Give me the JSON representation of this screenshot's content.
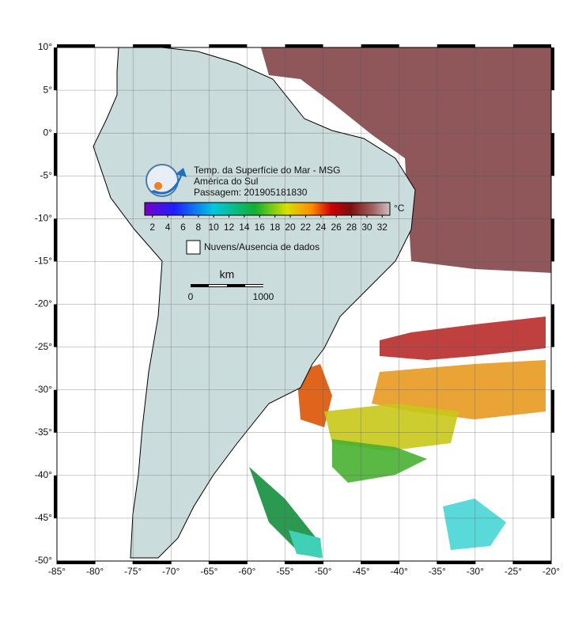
{
  "map": {
    "title": "Temp. da Superfície do Mar - MSG",
    "region": "América do Sul",
    "pass": "Passagem: 201905181830",
    "colorbar": {
      "unit": "°C",
      "range": [
        1,
        33
      ],
      "ticks": [
        2,
        4,
        6,
        8,
        10,
        12,
        14,
        16,
        18,
        20,
        22,
        24,
        26,
        28,
        30,
        32
      ]
    },
    "legend": "Nuvens/Ausencia de dados",
    "scale": {
      "unit": "km",
      "labels": [
        "0",
        "1000"
      ]
    },
    "xlim": [
      -85,
      -20
    ],
    "ylim": [
      -50,
      10
    ],
    "xticks": [
      {
        "value": -85,
        "label": "-85°"
      },
      {
        "value": -80,
        "label": "-80°"
      },
      {
        "value": -75,
        "label": "-75°"
      },
      {
        "value": -70,
        "label": "-70°"
      },
      {
        "value": -65,
        "label": "-65°"
      },
      {
        "value": -60,
        "label": "-60°"
      },
      {
        "value": -55,
        "label": "-55°"
      },
      {
        "value": -50,
        "label": "-50°"
      },
      {
        "value": -45,
        "label": "-45°"
      },
      {
        "value": -40,
        "label": "-40°"
      },
      {
        "value": -35,
        "label": "-35°"
      },
      {
        "value": -30,
        "label": "-30°"
      },
      {
        "value": -25,
        "label": "-25°"
      },
      {
        "value": -20,
        "label": "-20°"
      }
    ],
    "yticks": [
      {
        "value": 10,
        "label": "10°"
      },
      {
        "value": 5,
        "label": "5°"
      },
      {
        "value": 0,
        "label": "0°"
      },
      {
        "value": -5,
        "label": "-5°"
      },
      {
        "value": -10,
        "label": "-10°"
      },
      {
        "value": -15,
        "label": "-15°"
      },
      {
        "value": -20,
        "label": "-20°"
      },
      {
        "value": -25,
        "label": "-25°"
      },
      {
        "value": -30,
        "label": "-30°"
      },
      {
        "value": -35,
        "label": "-35°"
      },
      {
        "value": -40,
        "label": "-40°"
      },
      {
        "value": -45,
        "label": "-45°"
      },
      {
        "value": -50,
        "label": "-50°"
      }
    ],
    "grid": true
  }
}
